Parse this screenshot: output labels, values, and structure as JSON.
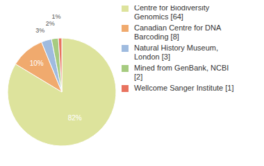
{
  "chart_data": {
    "type": "pie",
    "categories": [
      "Centre for Biodiversity Genomics [64]",
      "Canadian Centre for DNA Barcoding [8]",
      "Natural History Museum, London [3]",
      "Mined from GenBank, NCBI [2]",
      "Wellcome Sanger Institute [1]"
    ],
    "values": [
      82,
      10,
      3,
      2,
      1
    ],
    "value_labels": [
      "82%",
      "10%",
      "3%",
      "2%",
      "1%"
    ],
    "data_labels": true,
    "legend": "upper right",
    "colors": [
      "#dde39c",
      "#f0aa6e",
      "#9fbbdf",
      "#a6cb80",
      "#e8735f"
    ]
  }
}
